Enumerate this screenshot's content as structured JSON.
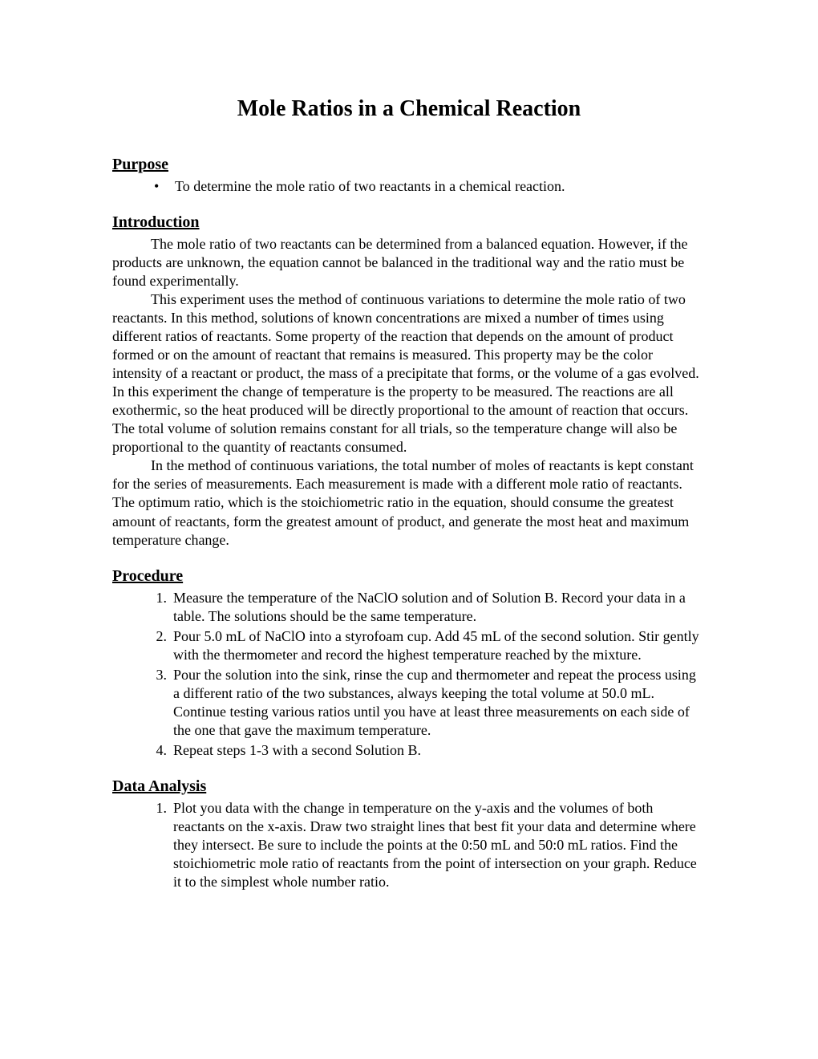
{
  "title": "Mole Ratios in a Chemical Reaction",
  "sections": {
    "purpose": {
      "heading": "Purpose",
      "items": [
        "To determine the mole ratio of two reactants in a chemical reaction."
      ]
    },
    "introduction": {
      "heading": "Introduction",
      "paragraphs": [
        "The mole ratio of two reactants can be determined from a balanced equation.  However, if the products are unknown, the equation cannot be balanced in the traditional way and the ratio must be found experimentally.",
        "This experiment uses the method of continuous variations to determine the mole ratio of two reactants.  In this method, solutions of known concentrations are mixed a number of times using different ratios of reactants.  Some property of the reaction that depends on the amount of product formed or on the amount of reactant that remains is measured.  This property may be the color intensity of a reactant or product, the mass of a precipitate that forms, or the volume of a gas evolved.  In this experiment the change of temperature is the property to be measured.  The reactions are all exothermic, so the heat produced will be directly proportional to the amount of reaction that occurs.  The total volume of solution remains constant for all trials, so the temperature change will also be proportional to the quantity of reactants consumed.",
        "In the method of continuous variations, the total number of moles of reactants is kept constant for the series of measurements.  Each measurement is made with a different mole ratio of reactants.  The optimum ratio, which is the stoichiometric ratio in the equation, should consume the greatest amount of reactants, form the greatest amount of product, and generate the most heat and maximum temperature change."
      ]
    },
    "procedure": {
      "heading": "Procedure",
      "steps": [
        "Measure the temperature of  the NaClO solution and of Solution B.  Record your data in a table.  The solutions should be the same temperature.",
        "Pour 5.0 mL of NaClO into a styrofoam cup.  Add 45 mL of the second solution. Stir gently with the thermometer and record the highest temperature reached by the mixture.",
        "Pour the solution into the sink, rinse the cup and thermometer and repeat the process using a different ratio of the two substances, always keeping the total volume at 50.0 mL.  Continue testing various ratios until you have at least three measurements on each side of the one that gave the maximum temperature.",
        "Repeat steps 1-3 with a second Solution B."
      ]
    },
    "data_analysis": {
      "heading": "Data Analysis",
      "steps": [
        "Plot you data with the change in temperature on the y-axis and the volumes  of both reactants on the x-axis.  Draw two straight lines that best fit your data and determine where they intersect.  Be sure to include the points at the 0:50 mL and 50:0 mL ratios.  Find the stoichiometric mole ratio of reactants from the point of intersection on your graph.  Reduce it to the simplest whole number ratio."
      ]
    }
  },
  "styling": {
    "page_bg": "#ffffff",
    "text_color": "#000000",
    "title_fontsize": 28,
    "heading_fontsize": 20,
    "body_fontsize": 18,
    "font_family": "Times New Roman"
  }
}
